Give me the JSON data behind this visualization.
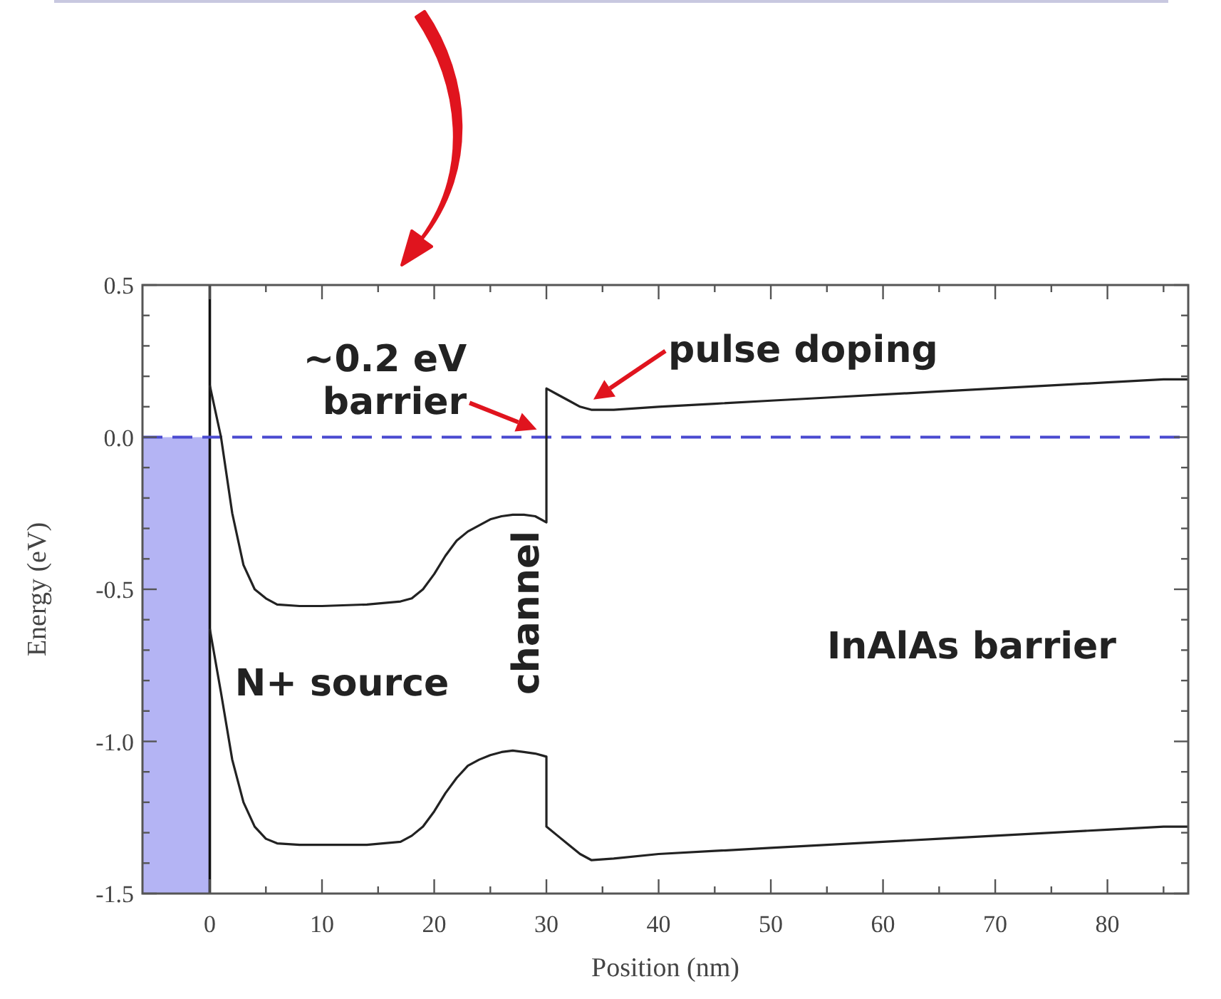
{
  "chart_data": {
    "type": "line",
    "xlabel": "Position (nm)",
    "ylabel": "Energy (eV)",
    "xlim": [
      -6,
      87.2
    ],
    "ylim": [
      -1.5,
      0.5
    ],
    "xticks": [
      0,
      {
        "value": 5,
        "label": null
      },
      10,
      {
        "value": 15,
        "label": null
      },
      20,
      {
        "value": 25,
        "label": null
      },
      30,
      {
        "value": 35,
        "label": null
      },
      40,
      {
        "value": 45,
        "label": null
      },
      50,
      {
        "value": 55,
        "label": null
      },
      60,
      {
        "value": 65,
        "label": null
      },
      70,
      {
        "value": 75,
        "label": null
      },
      80,
      {
        "value": 85,
        "label": null
      }
    ],
    "yticks": [
      {
        "value": -1.5,
        "label": "-1.5"
      },
      {
        "value": -1.4,
        "label": null
      },
      {
        "value": -1.3,
        "label": null
      },
      {
        "value": -1.2,
        "label": null
      },
      {
        "value": -1.1,
        "label": null
      },
      {
        "value": -1,
        "label": "-1.0"
      },
      {
        "value": -0.9,
        "label": null
      },
      {
        "value": -0.8,
        "label": null
      },
      {
        "value": -0.7,
        "label": null
      },
      {
        "value": -0.6,
        "label": null
      },
      {
        "value": -0.5,
        "label": "-0.5"
      },
      {
        "value": -0.4,
        "label": null
      },
      {
        "value": -0.3,
        "label": null
      },
      {
        "value": -0.2,
        "label": null
      },
      {
        "value": -0.1,
        "label": null
      },
      {
        "value": 0,
        "label": "0.0"
      },
      {
        "value": 0.1,
        "label": null
      },
      {
        "value": 0.2,
        "label": null
      },
      {
        "value": 0.3,
        "label": null
      },
      {
        "value": 0.4,
        "label": null
      },
      {
        "value": 0.5,
        "label": "0.5"
      }
    ],
    "marker": "none",
    "line_style": "solid",
    "series": [
      {
        "type": "area",
        "color": "#b4b4f4",
        "x": [
          -6,
          0
        ],
        "values": [
          -1.5,
          -1.5
        ]
      },
      {
        "color": "#222222",
        "x": [
          0,
          1,
          2,
          3,
          4,
          5,
          6,
          8,
          10,
          14,
          17,
          18,
          19,
          20,
          21,
          22,
          23,
          24,
          25,
          26,
          27,
          28,
          29,
          30,
          30,
          31,
          32,
          33,
          34,
          36,
          40,
          45,
          50,
          55,
          60,
          65,
          70,
          75,
          80,
          85,
          87.2
        ],
        "values": [
          0.17,
          0,
          -0.25,
          -0.42,
          -0.5,
          -0.53,
          -0.55,
          -0.555,
          -0.555,
          -0.55,
          -0.54,
          -0.53,
          -0.5,
          -0.45,
          -0.39,
          -0.34,
          -0.31,
          -0.29,
          -0.27,
          -0.26,
          -0.255,
          -0.255,
          -0.26,
          -0.28,
          0.16,
          0.14,
          0.12,
          0.1,
          0.09,
          0.09,
          0.1,
          0.11,
          0.12,
          0.13,
          0.14,
          0.15,
          0.16,
          0.17,
          0.18,
          0.19,
          0.19
        ]
      },
      {
        "color": "#222222",
        "x": [
          0,
          1,
          2,
          3,
          4,
          5,
          6,
          8,
          10,
          14,
          17,
          18,
          19,
          20,
          21,
          22,
          23,
          24,
          25,
          26,
          27,
          28,
          29,
          30,
          30,
          31,
          32,
          33,
          34,
          36,
          40,
          45,
          50,
          55,
          60,
          65,
          70,
          75,
          80,
          85,
          87.2
        ],
        "values": [
          -0.63,
          -0.84,
          -1.06,
          -1.2,
          -1.28,
          -1.32,
          -1.335,
          -1.34,
          -1.34,
          -1.34,
          -1.33,
          -1.31,
          -1.28,
          -1.23,
          -1.17,
          -1.12,
          -1.08,
          -1.06,
          -1.045,
          -1.035,
          -1.03,
          -1.035,
          -1.04,
          -1.05,
          -1.28,
          -1.31,
          -1.34,
          -1.37,
          -1.39,
          -1.385,
          -1.37,
          -1.36,
          -1.35,
          -1.34,
          -1.33,
          -1.32,
          -1.31,
          -1.3,
          -1.29,
          -1.28,
          -1.28
        ]
      }
    ],
    "ref_lines": [
      {
        "axis": "x",
        "value": 0,
        "color": "#111111",
        "line_style": "solid"
      },
      {
        "axis": "y",
        "value": 0,
        "color": "#4a4ad0",
        "line_style": "dashed"
      }
    ],
    "annotations": [
      {
        "text": "~0.2 eV barrier",
        "x": 29.5,
        "y": 0.02
      },
      "pulse doping",
      "N+ source",
      "channel",
      "InAlAs barrier"
    ]
  }
}
